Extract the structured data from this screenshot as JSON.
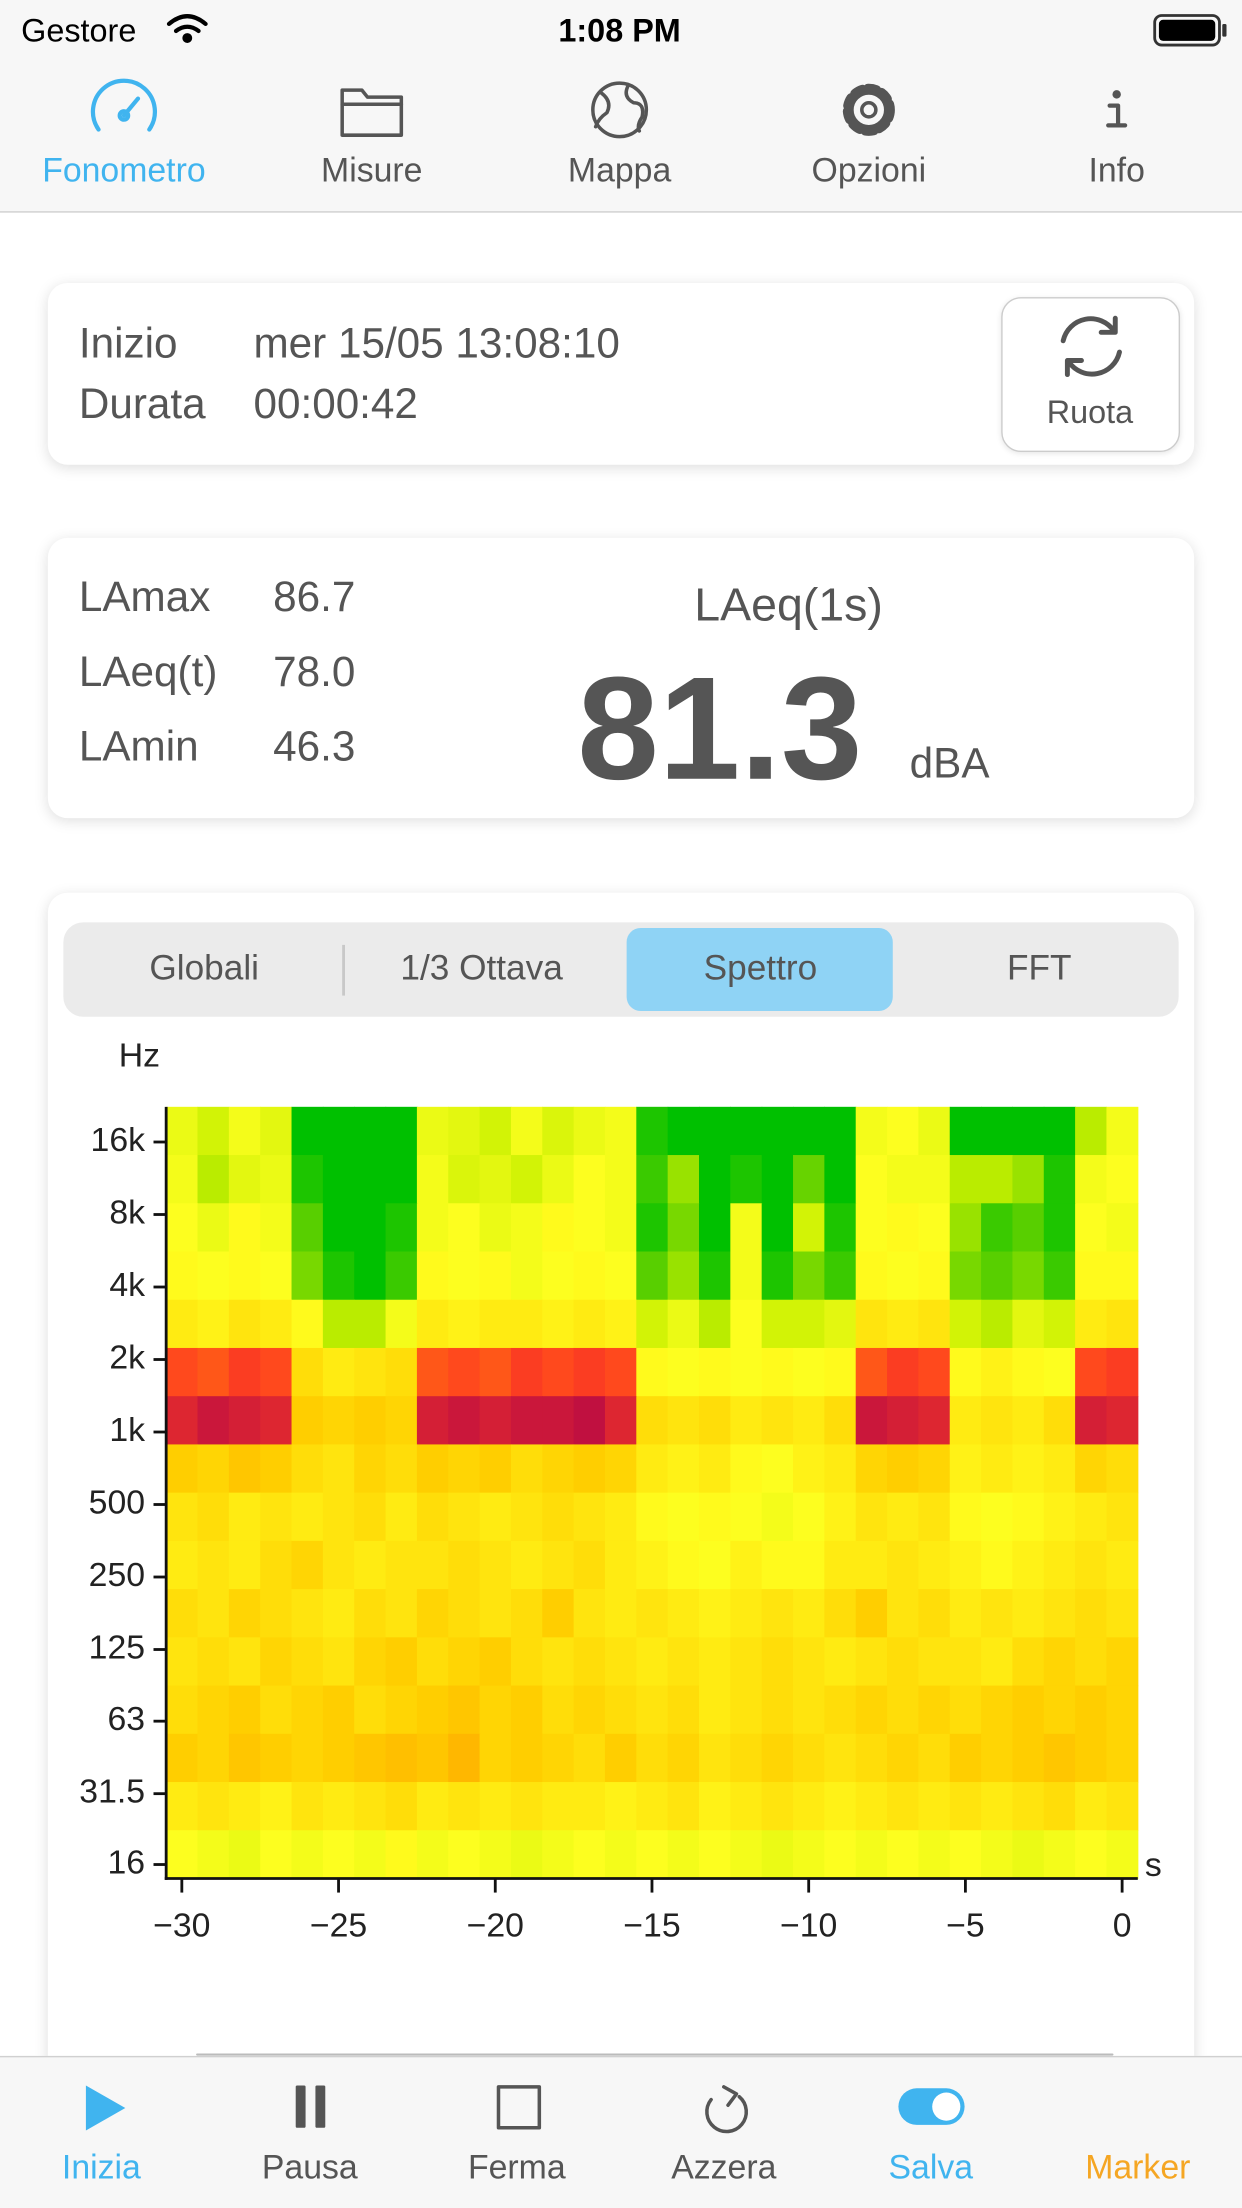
{
  "status_bar": {
    "carrier": "Gestore",
    "time": "1:08 PM"
  },
  "top_tabs": {
    "items": [
      "Fonometro",
      "Misure",
      "Mappa",
      "Opzioni",
      "Info"
    ],
    "active_index": 0
  },
  "session": {
    "start_label": "Inizio",
    "start_value": "mer 15/05 13:08:10",
    "duration_label": "Durata",
    "duration_value": "00:00:42",
    "rotate_button": "Ruota"
  },
  "levels": {
    "rows": [
      {
        "label": "LAmax",
        "value": "86.7"
      },
      {
        "label": "LAeq(t)",
        "value": "78.0"
      },
      {
        "label": "LAmin",
        "value": "46.3"
      }
    ],
    "main_label": "LAeq(1s)",
    "main_value": "81.3",
    "main_unit": "dBA"
  },
  "segmented": {
    "items": [
      "Globali",
      "1/3 Ottava",
      "Spettro",
      "FFT"
    ],
    "selected_index": 2
  },
  "chart_data": {
    "type": "heatmap",
    "y_label": "Hz",
    "x_label": "s",
    "log_y": true,
    "xlim": [
      -30.5,
      0.5
    ],
    "ylim": [
      14,
      22400
    ],
    "zlim": [
      38,
      83
    ],
    "colors": [
      "#00c000",
      "#5ed000",
      "#c8f000",
      "#ffff20",
      "#ffd000",
      "#ffa000",
      "#ff4020",
      "#c01040"
    ],
    "xticks": [
      {
        "value": -30,
        "label": "−30"
      },
      {
        "value": -25,
        "label": "−25"
      },
      {
        "value": -20,
        "label": "−20"
      },
      {
        "value": -15,
        "label": "−15"
      },
      {
        "value": -10,
        "label": "−10"
      },
      {
        "value": -5,
        "label": "−5"
      },
      0
    ],
    "yticks": [
      16,
      31.5,
      63,
      125,
      250,
      500,
      {
        "value": 1000,
        "label": "1k"
      },
      {
        "value": 2000,
        "label": "2k"
      },
      {
        "value": 4000,
        "label": "4k"
      },
      {
        "value": 8000,
        "label": "8k"
      },
      {
        "value": 16000,
        "label": "16k"
      }
    ],
    "x": [
      -30,
      -29,
      -28,
      -27,
      -26,
      -25,
      -24,
      -23,
      -22,
      -21,
      -20,
      -19,
      -18,
      -17,
      -16,
      -15,
      -14,
      -13,
      -12,
      -11,
      -10,
      -9,
      -8,
      -7,
      -6,
      -5,
      -4,
      -3,
      -2,
      -1,
      0
    ],
    "z": [
      [
        55,
        52,
        56,
        54,
        38,
        38,
        38,
        38,
        55,
        54,
        52,
        56,
        53,
        55,
        56,
        40,
        38,
        38,
        38,
        38,
        38,
        38,
        56,
        57,
        55,
        38,
        38,
        38,
        38,
        50,
        56
      ],
      [
        56,
        50,
        54,
        55,
        40,
        38,
        38,
        38,
        56,
        53,
        54,
        52,
        55,
        57,
        56,
        42,
        48,
        38,
        40,
        38,
        45,
        38,
        57,
        56,
        56,
        50,
        50,
        48,
        40,
        56,
        57
      ],
      [
        57,
        55,
        58,
        56,
        44,
        38,
        38,
        40,
        56,
        57,
        55,
        56,
        58,
        57,
        56,
        40,
        46,
        38,
        56,
        38,
        52,
        40,
        57,
        58,
        57,
        48,
        42,
        44,
        40,
        57,
        56
      ],
      [
        58,
        57,
        58,
        57,
        46,
        40,
        38,
        42,
        58,
        57,
        58,
        56,
        57,
        58,
        57,
        44,
        48,
        40,
        56,
        40,
        46,
        42,
        58,
        57,
        58,
        46,
        44,
        46,
        42,
        58,
        58
      ],
      [
        60,
        59,
        61,
        60,
        58,
        50,
        50,
        56,
        60,
        59,
        60,
        60,
        59,
        60,
        59,
        52,
        55,
        50,
        57,
        52,
        52,
        54,
        61,
        60,
        61,
        52,
        50,
        54,
        52,
        60,
        61
      ],
      [
        76,
        75,
        77,
        76,
        62,
        60,
        61,
        62,
        75,
        76,
        75,
        77,
        76,
        77,
        76,
        58,
        57,
        58,
        57,
        58,
        57,
        58,
        75,
        77,
        76,
        58,
        59,
        58,
        57,
        76,
        77
      ],
      [
        80,
        82,
        81,
        80,
        64,
        63,
        64,
        63,
        81,
        82,
        81,
        82,
        82,
        83,
        80,
        62,
        61,
        62,
        60,
        61,
        60,
        62,
        82,
        81,
        80,
        60,
        61,
        60,
        62,
        81,
        80
      ],
      [
        64,
        63,
        65,
        64,
        62,
        61,
        63,
        62,
        64,
        63,
        64,
        62,
        63,
        64,
        63,
        60,
        59,
        60,
        58,
        57,
        59,
        60,
        63,
        64,
        63,
        59,
        60,
        59,
        60,
        63,
        62
      ],
      [
        61,
        62,
        60,
        61,
        60,
        61,
        62,
        60,
        62,
        61,
        60,
        61,
        62,
        61,
        60,
        58,
        57,
        58,
        57,
        56,
        57,
        59,
        61,
        60,
        61,
        58,
        57,
        58,
        59,
        60,
        61
      ],
      [
        60,
        61,
        60,
        62,
        63,
        61,
        60,
        61,
        61,
        62,
        61,
        60,
        61,
        62,
        60,
        59,
        58,
        57,
        59,
        58,
        58,
        60,
        60,
        61,
        60,
        59,
        58,
        59,
        60,
        61,
        60
      ],
      [
        62,
        61,
        63,
        62,
        61,
        60,
        62,
        61,
        63,
        62,
        61,
        62,
        64,
        61,
        60,
        61,
        60,
        59,
        60,
        61,
        60,
        62,
        64,
        61,
        62,
        60,
        61,
        60,
        61,
        62,
        61
      ],
      [
        61,
        62,
        61,
        63,
        62,
        61,
        63,
        64,
        62,
        63,
        64,
        62,
        61,
        62,
        61,
        60,
        61,
        60,
        61,
        62,
        61,
        60,
        61,
        62,
        61,
        61,
        60,
        62,
        63,
        62,
        63
      ],
      [
        62,
        63,
        64,
        62,
        63,
        64,
        62,
        63,
        64,
        65,
        63,
        64,
        62,
        63,
        62,
        61,
        62,
        60,
        61,
        62,
        61,
        62,
        63,
        62,
        63,
        62,
        63,
        64,
        63,
        64,
        63
      ],
      [
        64,
        63,
        65,
        64,
        63,
        64,
        65,
        66,
        65,
        67,
        63,
        64,
        63,
        62,
        64,
        62,
        63,
        61,
        62,
        63,
        62,
        61,
        62,
        63,
        62,
        64,
        63,
        64,
        65,
        64,
        63
      ],
      [
        60,
        61,
        60,
        59,
        61,
        60,
        61,
        62,
        60,
        61,
        60,
        61,
        60,
        60,
        59,
        60,
        61,
        59,
        60,
        61,
        60,
        59,
        60,
        61,
        60,
        61,
        60,
        61,
        62,
        60,
        61
      ],
      [
        57,
        56,
        55,
        57,
        56,
        57,
        56,
        58,
        56,
        57,
        56,
        55,
        56,
        57,
        56,
        57,
        56,
        57,
        56,
        55,
        56,
        57,
        56,
        57,
        56,
        57,
        56,
        55,
        56,
        57,
        56
      ]
    ]
  },
  "bottom_toolbar": {
    "items": [
      "Inizia",
      "Pausa",
      "Ferma",
      "Azzera",
      "Salva",
      "Marker"
    ]
  }
}
